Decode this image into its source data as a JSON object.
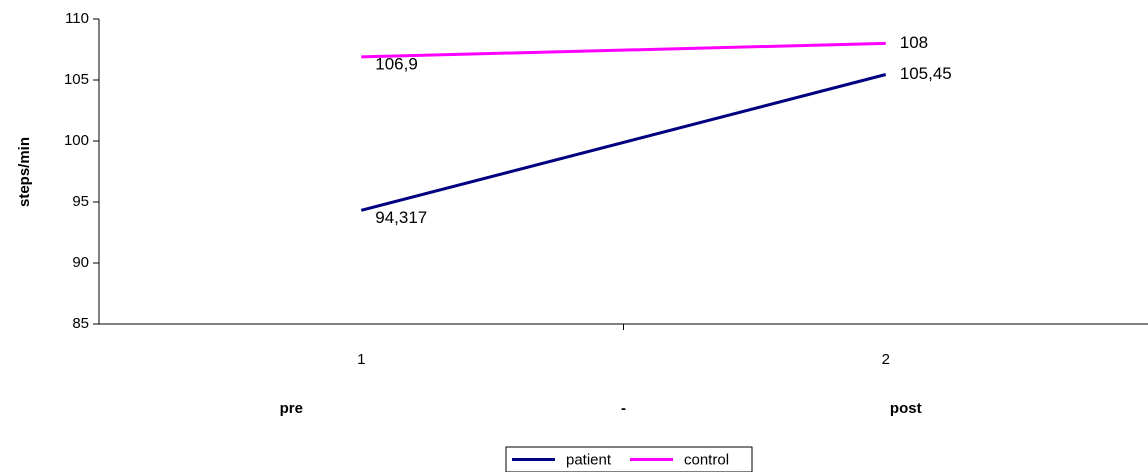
{
  "chart_data": {
    "type": "line",
    "categories": [
      "1",
      "2"
    ],
    "category_groups": [
      "pre",
      "-",
      "post"
    ],
    "ylabel": "steps/min",
    "ylim": [
      85,
      110
    ],
    "yticks": [
      85,
      90,
      95,
      100,
      105,
      110
    ],
    "ytick_labels": [
      "85",
      "90",
      "95",
      "100",
      "105",
      "110"
    ],
    "grid": false,
    "legend_position": "bottom",
    "series": [
      {
        "name": "patient",
        "color": "#000080",
        "values": [
          94.317,
          105.45
        ],
        "labels": [
          "94,317",
          "105,45"
        ]
      },
      {
        "name": "control",
        "color": "#ff00ff",
        "values": [
          106.9,
          108
        ],
        "labels": [
          "106,9",
          "108"
        ]
      }
    ]
  }
}
